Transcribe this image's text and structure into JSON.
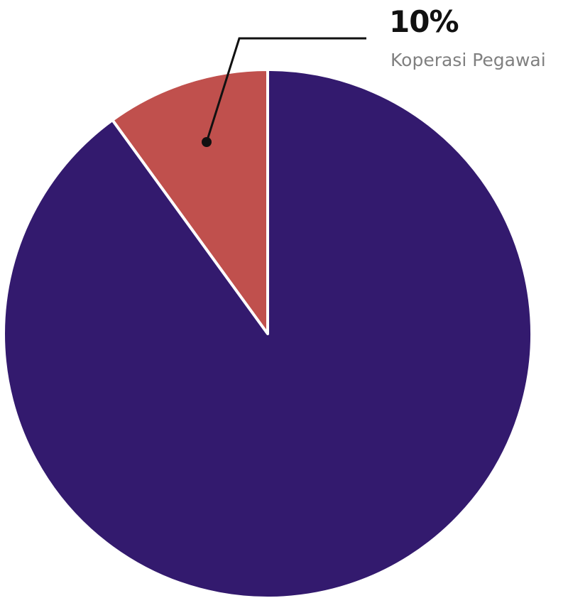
{
  "chart_data": {
    "type": "pie",
    "title": "",
    "start_angle": "12 o'clock",
    "direction": "counterclockwise",
    "slices": [
      {
        "label": "Koperasi Pegawai",
        "value": 10,
        "value_label": "10%",
        "color": "#C0504D"
      },
      {
        "label": "",
        "value": 90,
        "color": "#331A6E"
      }
    ],
    "legend": "none",
    "callout": {
      "slice": 0,
      "value_label": "10%",
      "label": "Koperasi Pegawai"
    }
  }
}
